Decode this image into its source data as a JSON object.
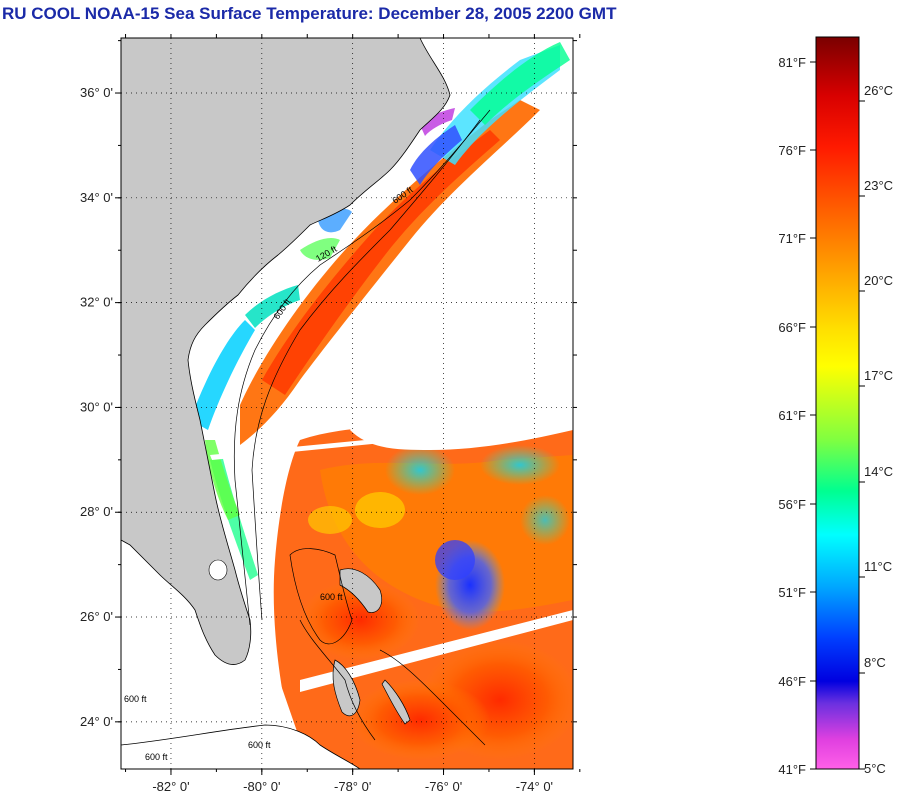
{
  "title": "RU COOL  NOAA-15  Sea Surface Temperature:  December 28, 2005 2200 GMT",
  "map": {
    "lat_ticks": [
      {
        "value": 36,
        "label": "36° 0'"
      },
      {
        "value": 34,
        "label": "34° 0'"
      },
      {
        "value": 32,
        "label": "32° 0'"
      },
      {
        "value": 30,
        "label": "30° 0'"
      },
      {
        "value": 28,
        "label": "28° 0'"
      },
      {
        "value": 26,
        "label": "26° 0'"
      },
      {
        "value": 24,
        "label": "24° 0'"
      }
    ],
    "lon_ticks": [
      {
        "value": -82,
        "label": "-82° 0'"
      },
      {
        "value": -80,
        "label": "-80° 0'"
      },
      {
        "value": -78,
        "label": "-78° 0'"
      },
      {
        "value": -76,
        "label": "-76° 0'"
      },
      {
        "value": -74,
        "label": "-74° 0'"
      }
    ],
    "contour_labels": [
      "600 ft",
      "120 ft",
      "600 ft",
      "600 ft",
      "600 ft",
      "600 ft",
      "600 ft"
    ],
    "colors": {
      "land": "#c8c8c8",
      "ocean_no_data": "#ffffff",
      "coast": "#000000"
    }
  },
  "colorbar": {
    "fahrenheit": [
      "81°F",
      "76°F",
      "71°F",
      "66°F",
      "61°F",
      "56°F",
      "51°F",
      "46°F",
      "41°F"
    ],
    "celsius": [
      "26°C",
      "23°C",
      "20°C",
      "17°C",
      "14°C",
      "11°C",
      "8°C",
      "5°C"
    ]
  }
}
